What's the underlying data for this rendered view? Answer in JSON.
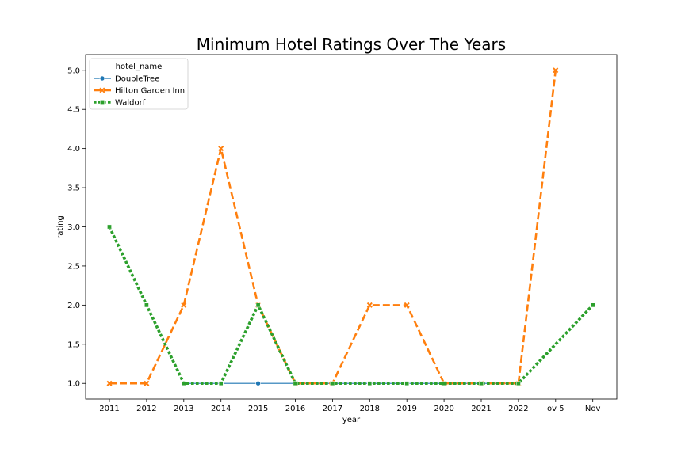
{
  "chart_data": {
    "type": "line",
    "title": "Minimum Hotel Ratings Over The Years",
    "xlabel": "year",
    "ylabel": "rating",
    "categories": [
      "2011",
      "2012",
      "2013",
      "2014",
      "2015",
      "2016",
      "2017",
      "2018",
      "2019",
      "2020",
      "2021",
      "2022",
      "ov 5",
      "Nov"
    ],
    "ylim": [
      0.8,
      5.2
    ],
    "yticks": [
      "1.0",
      "1.5",
      "2.0",
      "2.5",
      "3.0",
      "3.5",
      "4.0",
      "4.5",
      "5.0"
    ],
    "grid": false,
    "legend": {
      "title": "hotel_name",
      "placement": "top-left"
    },
    "series": [
      {
        "name": "DoubleTree",
        "color": "#1f77b4",
        "style": "solid",
        "marker": "circle",
        "values": [
          null,
          null,
          1.0,
          1.0,
          1.0,
          1.0,
          1.0,
          1.0,
          1.0,
          1.0,
          1.0,
          1.0,
          null,
          null
        ]
      },
      {
        "name": "Hilton Garden Inn",
        "color": "#ff7f0e",
        "style": "dashed",
        "marker": "x",
        "values": [
          1.0,
          1.0,
          2.0,
          4.0,
          2.0,
          1.0,
          1.0,
          2.0,
          2.0,
          1.0,
          1.0,
          1.0,
          5.0,
          null
        ]
      },
      {
        "name": "Waldorf",
        "color": "#2ca02c",
        "style": "dotted",
        "marker": "square",
        "values": [
          3.0,
          2.0,
          1.0,
          1.0,
          2.0,
          1.0,
          1.0,
          1.0,
          1.0,
          1.0,
          1.0,
          1.0,
          null,
          2.0
        ]
      }
    ]
  }
}
